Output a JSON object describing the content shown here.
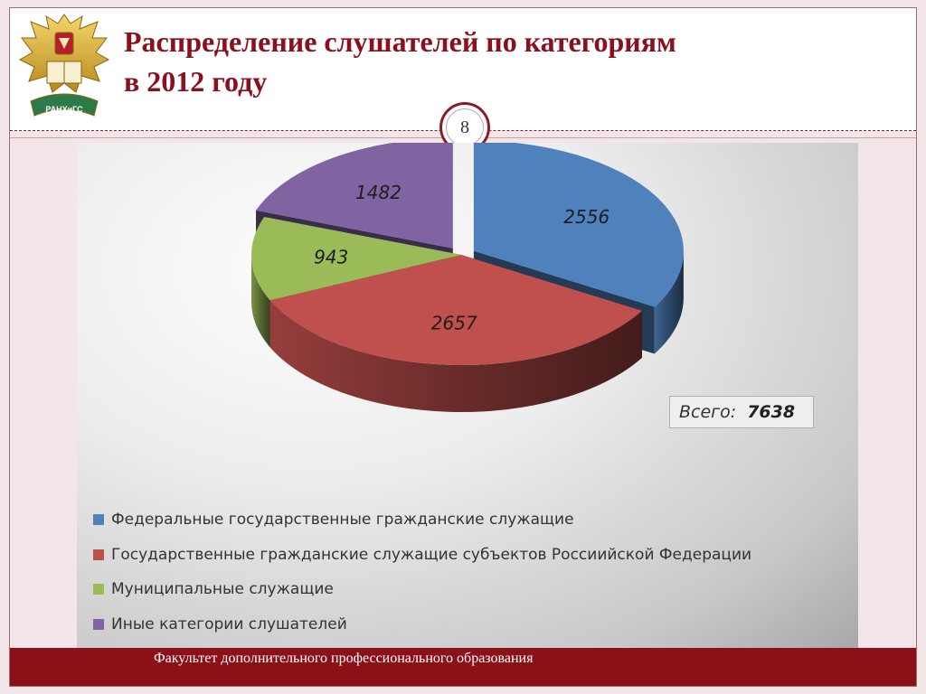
{
  "slide": {
    "title_line1": "Распределение слушателей по категориям",
    "title_line2": "в 2012 году",
    "page_number": "8",
    "emblem_text": "РАНХиГС",
    "footer": "Факультет дополнительного профессионального образования"
  },
  "chart_data": {
    "type": "pie",
    "title": "",
    "categories": [
      "Федеральные государственные гражданские служащие",
      "Государственные гражданские служащие субъектов Россиийской Федерации",
      "Муниципальные служащие",
      "Иные категории слушателей"
    ],
    "values": [
      2556,
      2657,
      943,
      1482
    ],
    "value_labels": [
      "2556",
      "2657",
      "943",
      "1482"
    ],
    "colors": [
      "#4f81bd",
      "#c0504d",
      "#9bbb59",
      "#8064a2"
    ],
    "total_label": "Всего:",
    "total_value": "7638",
    "legend_position": "bottom-left",
    "exploded": [
      "Федеральные государственные гражданские служащие",
      "Иные категории слушателей"
    ]
  }
}
